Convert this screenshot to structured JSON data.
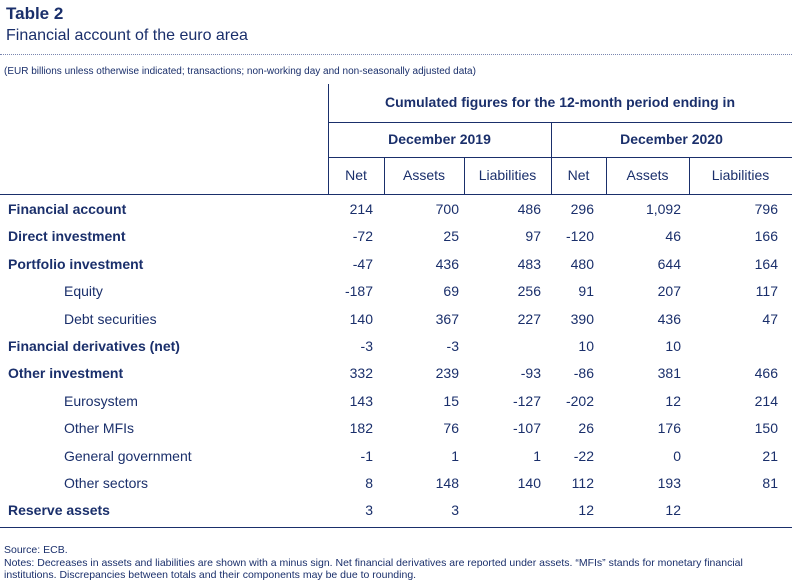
{
  "header": {
    "table_label": "Table 2",
    "title": "Financial account of the euro area",
    "unit_note": "(EUR billions unless otherwise indicated; transactions; non-working day and non-seasonally adjusted data)"
  },
  "table": {
    "super_header": "Cumulated figures for the 12-month period ending in",
    "periods": [
      "December 2019",
      "December 2020"
    ],
    "columns": [
      "Net",
      "Assets",
      "Liabilities",
      "Net",
      "Assets",
      "Liabilities"
    ],
    "rows": [
      {
        "label": "Financial account",
        "bold": true,
        "values": [
          "214",
          "700",
          "486",
          "296",
          "1,092",
          "796"
        ]
      },
      {
        "label": "Direct investment",
        "bold": true,
        "values": [
          "-72",
          "25",
          "97",
          "-120",
          "46",
          "166"
        ]
      },
      {
        "label": "Portfolio investment",
        "bold": true,
        "values": [
          "-47",
          "436",
          "483",
          "480",
          "644",
          "164"
        ]
      },
      {
        "label": "Equity",
        "bold": false,
        "values": [
          "-187",
          "69",
          "256",
          "91",
          "207",
          "117"
        ]
      },
      {
        "label": "Debt securities",
        "bold": false,
        "values": [
          "140",
          "367",
          "227",
          "390",
          "436",
          "47"
        ]
      },
      {
        "label": "Financial derivatives (net)",
        "bold": true,
        "values": [
          "-3",
          "-3",
          "",
          "10",
          "10",
          ""
        ]
      },
      {
        "label": "Other investment",
        "bold": true,
        "values": [
          "332",
          "239",
          "-93",
          "-86",
          "381",
          "466"
        ]
      },
      {
        "label": "Eurosystem",
        "bold": false,
        "values": [
          "143",
          "15",
          "-127",
          "-202",
          "12",
          "214"
        ]
      },
      {
        "label": "Other MFIs",
        "bold": false,
        "values": [
          "182",
          "76",
          "-107",
          "26",
          "176",
          "150"
        ]
      },
      {
        "label": "General government",
        "bold": false,
        "values": [
          "-1",
          "1",
          "1",
          "-22",
          "0",
          "21"
        ]
      },
      {
        "label": "Other sectors",
        "bold": false,
        "values": [
          "8",
          "148",
          "140",
          "112",
          "193",
          "81"
        ]
      },
      {
        "label": "Reserve assets",
        "bold": true,
        "values": [
          "3",
          "3",
          "",
          "12",
          "12",
          ""
        ]
      }
    ]
  },
  "footer": {
    "source": "Source: ECB.",
    "notes": "Notes: Decreases in assets and liabilities are shown with a minus sign. Net financial derivatives are reported under assets. “MFIs” stands for monetary financial institutions. Discrepancies between totals and their components may be due to rounding."
  }
}
